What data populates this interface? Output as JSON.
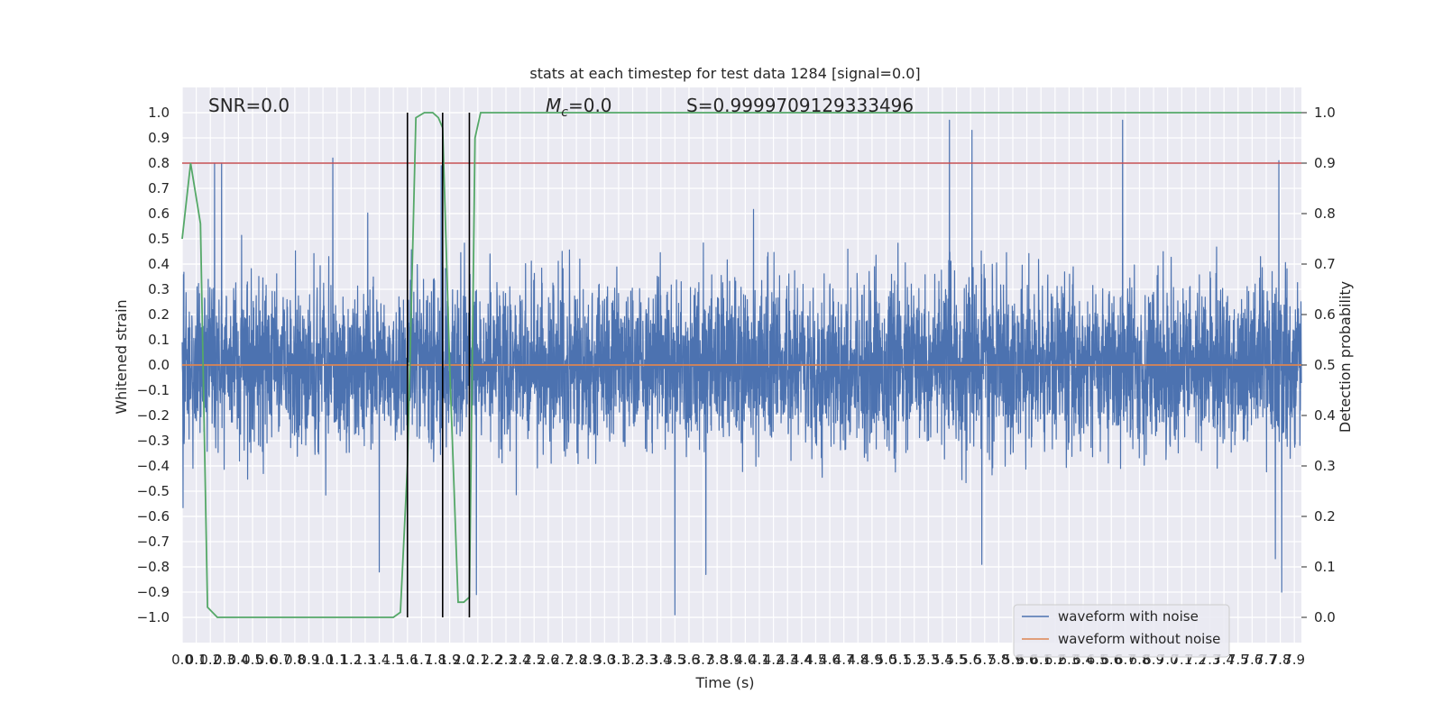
{
  "chart_data": {
    "type": "line",
    "title": "stats at each timestep for test data 1284 [signal=0.0]",
    "xlabel": "Time (s)",
    "ylabel_left": "Whitened strain",
    "ylabel_right": "Detection probability",
    "xlim": [
      0.0,
      7.95
    ],
    "ylim_left": [
      -1.1,
      1.1
    ],
    "ylim_right": [
      -0.05,
      1.05
    ],
    "x_ticks": [
      "0.0",
      "0.1",
      "0.2",
      "0.3",
      "0.4",
      "0.5",
      "0.6",
      "0.7",
      "0.8",
      "0.9",
      "1.0",
      "1.1",
      "1.2",
      "1.3",
      "1.4",
      "1.5",
      "1.6",
      "1.7",
      "1.8",
      "1.9",
      "2.0",
      "2.1",
      "2.2",
      "2.3",
      "2.4",
      "2.5",
      "2.6",
      "2.7",
      "2.8",
      "2.9",
      "3.0",
      "3.1",
      "3.2",
      "3.3",
      "3.4",
      "3.5",
      "3.6",
      "3.7",
      "3.8",
      "3.9",
      "4.0",
      "4.1",
      "4.2",
      "4.3",
      "4.4",
      "4.5",
      "4.6",
      "4.7",
      "4.8",
      "4.9",
      "5.0",
      "5.1",
      "5.2",
      "5.3",
      "5.4",
      "5.5",
      "5.6",
      "5.7",
      "5.8",
      "5.9",
      "6.0",
      "6.1",
      "6.2",
      "6.3",
      "6.4",
      "6.5",
      "6.6",
      "6.7",
      "6.8",
      "6.9",
      "7.0",
      "7.1",
      "7.2",
      "7.3",
      "7.4",
      "7.5",
      "7.6",
      "7.7",
      "7.8",
      "7.9"
    ],
    "y_ticks_left": [
      "−1.0",
      "−0.9",
      "−0.8",
      "−0.7",
      "−0.6",
      "−0.5",
      "−0.4",
      "−0.3",
      "−0.2",
      "−0.1",
      "0.0",
      "0.1",
      "0.2",
      "0.3",
      "0.4",
      "0.5",
      "0.6",
      "0.7",
      "0.8",
      "0.9",
      "1.0"
    ],
    "y_ticks_right": [
      "0.0",
      "0.1",
      "0.2",
      "0.3",
      "0.4",
      "0.5",
      "0.6",
      "0.7",
      "0.8",
      "0.9",
      "1.0"
    ],
    "annotations": {
      "snr": "SNR=0.0",
      "mc_symbol": "M",
      "mc_sub": "c",
      "mc_value": "=0.0",
      "s": "S=0.9999709129333496"
    },
    "threshold": 0.9,
    "vlines": [
      1.6,
      1.85,
      2.04
    ],
    "series": [
      {
        "name": "waveform with noise",
        "color": "#4c72b0",
        "axis": "left",
        "noise_std": 0.16,
        "spikes": [
          {
            "x": 0.23,
            "y": 0.8
          },
          {
            "x": 0.28,
            "y": 0.8
          },
          {
            "x": 1.07,
            "y": 0.82
          },
          {
            "x": 1.84,
            "y": 0.79
          },
          {
            "x": 5.45,
            "y": 0.97
          },
          {
            "x": 5.61,
            "y": 0.93
          },
          {
            "x": 6.68,
            "y": 0.97
          },
          {
            "x": 7.79,
            "y": 0.81
          },
          {
            "x": 3.5,
            "y": -0.99
          },
          {
            "x": 7.81,
            "y": -0.9
          },
          {
            "x": 2.09,
            "y": -0.91
          },
          {
            "x": 3.72,
            "y": -0.83
          },
          {
            "x": 5.68,
            "y": -0.79
          },
          {
            "x": 1.4,
            "y": -0.82
          }
        ]
      },
      {
        "name": "waveform without noise",
        "color": "#dd8452",
        "axis": "left",
        "x": [
          0.0,
          7.95
        ],
        "y": [
          0.0,
          0.0
        ]
      },
      {
        "name": "detection probability",
        "color": "#55a868",
        "axis": "right",
        "x": [
          0.0,
          0.06,
          0.13,
          0.18,
          0.25,
          1.5,
          1.55,
          1.6,
          1.66,
          1.72,
          1.78,
          1.82,
          1.85,
          1.9,
          1.96,
          2.0,
          2.04,
          2.08,
          2.12,
          2.18,
          7.95
        ],
        "y": [
          0.75,
          0.9,
          0.78,
          0.02,
          0.0,
          0.0,
          0.01,
          0.3,
          0.99,
          1.0,
          1.0,
          0.99,
          0.97,
          0.5,
          0.03,
          0.03,
          0.04,
          0.95,
          1.0,
          1.0,
          1.0
        ]
      },
      {
        "name": "threshold",
        "color": "#c44e52",
        "axis": "right",
        "x": [
          0.0,
          7.95
        ],
        "y": [
          0.9,
          0.9
        ]
      }
    ],
    "legend": {
      "placement": "lower-right",
      "entries": [
        "waveform with noise",
        "waveform without noise"
      ]
    },
    "grid": true
  }
}
